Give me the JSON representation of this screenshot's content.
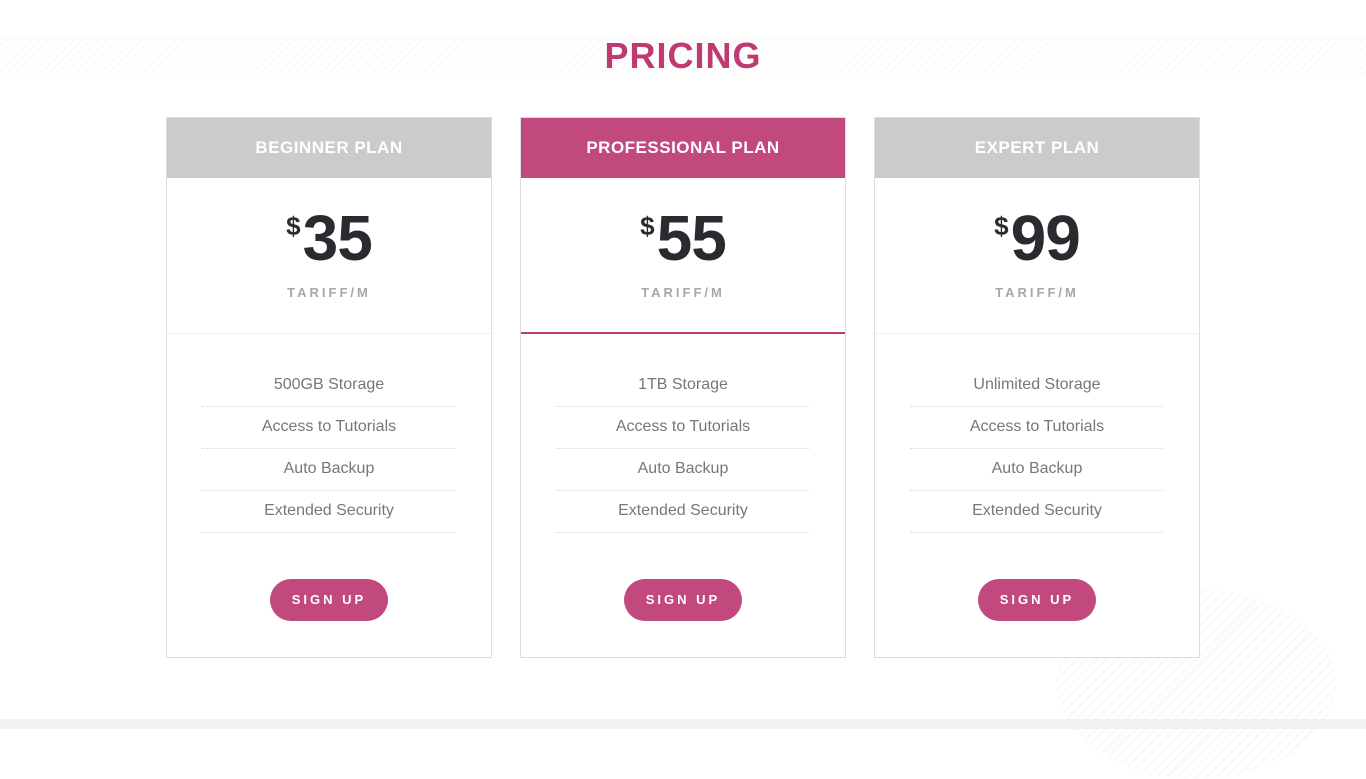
{
  "theme": {
    "accent": "#c1497e",
    "accent_dark": "#be3a70",
    "header_gray": "#cbcbcb",
    "price_color": "#2b2a30",
    "period_color": "#a7a6ae",
    "feature_color": "#77767b"
  },
  "page": {
    "title": "PRICING"
  },
  "plans": [
    {
      "name": "BEGINNER PLAN",
      "currency": "$",
      "price": "35",
      "period": "TARIFF/M",
      "features": [
        "500GB Storage",
        "Access to Tutorials",
        "Auto Backup",
        "Extended Security"
      ],
      "cta": "SIGN UP",
      "featured": false
    },
    {
      "name": "PROFESSIONAL PLAN",
      "currency": "$",
      "price": "55",
      "period": "TARIFF/M",
      "features": [
        "1TB Storage",
        "Access to Tutorials",
        "Auto Backup",
        "Extended Security"
      ],
      "cta": "SIGN UP",
      "featured": true
    },
    {
      "name": "EXPERT PLAN",
      "currency": "$",
      "price": "99",
      "period": "TARIFF/M",
      "features": [
        "Unlimited Storage",
        "Access to Tutorials",
        "Auto Backup",
        "Extended Security"
      ],
      "cta": "SIGN UP",
      "featured": false
    }
  ]
}
